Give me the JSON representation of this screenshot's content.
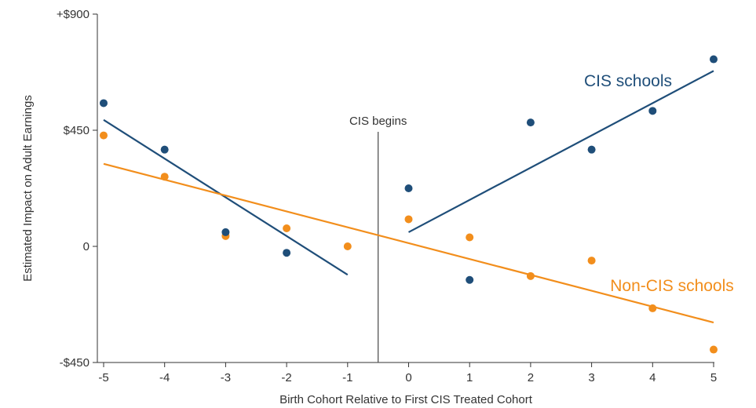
{
  "chart_data": {
    "type": "scatter",
    "xlabel": "Birth Cohort Relative to First CIS Treated Cohort",
    "ylabel": "Estimated Impact on Adult Earnings",
    "xlim": [
      -5,
      5
    ],
    "ylim": [
      -450,
      900
    ],
    "x_ticks": [
      -5,
      -4,
      -3,
      -2,
      -1,
      0,
      1,
      2,
      3,
      4,
      5
    ],
    "x_tick_labels": [
      "-5",
      "-4",
      "-3",
      "-2",
      "-1",
      "0",
      "1",
      "2",
      "3",
      "4",
      "5"
    ],
    "y_ticks": [
      -450,
      0,
      450,
      900
    ],
    "y_tick_labels": [
      "-$450",
      "0",
      "$450",
      "+$900"
    ],
    "grid": false,
    "series": [
      {
        "name": "CIS schools",
        "color": "#1f4e79",
        "points": [
          {
            "x": -5,
            "y": 555
          },
          {
            "x": -4,
            "y": 375
          },
          {
            "x": -3,
            "y": 55
          },
          {
            "x": -2,
            "y": -25
          },
          {
            "x": 0,
            "y": 225
          },
          {
            "x": 1,
            "y": -130
          },
          {
            "x": 2,
            "y": 480
          },
          {
            "x": 3,
            "y": 375
          },
          {
            "x": 4,
            "y": 525
          },
          {
            "x": 5,
            "y": 725
          }
        ],
        "fit_lines": [
          {
            "x": [
              -5,
              -1
            ],
            "y": [
              490,
              -110
            ]
          },
          {
            "x": 0,
            "x_end": 5,
            "y": [
              55,
              680
            ]
          }
        ]
      },
      {
        "name": "Non-CIS schools",
        "color": "#f28e1c",
        "points": [
          {
            "x": -5,
            "y": 430
          },
          {
            "x": -4,
            "y": 270
          },
          {
            "x": -3,
            "y": 40
          },
          {
            "x": -2,
            "y": 70
          },
          {
            "x": -1,
            "y": 0
          },
          {
            "x": 0,
            "y": 105
          },
          {
            "x": 1,
            "y": 35
          },
          {
            "x": 2,
            "y": -115
          },
          {
            "x": 3,
            "y": -55
          },
          {
            "x": 4,
            "y": -240
          },
          {
            "x": 5,
            "y": -400
          }
        ],
        "fit_lines": [
          {
            "x": [
              -5,
              5
            ],
            "y": [
              320,
              -295
            ]
          }
        ]
      }
    ],
    "vline": {
      "x": -0.5,
      "label": "CIS begins"
    }
  }
}
